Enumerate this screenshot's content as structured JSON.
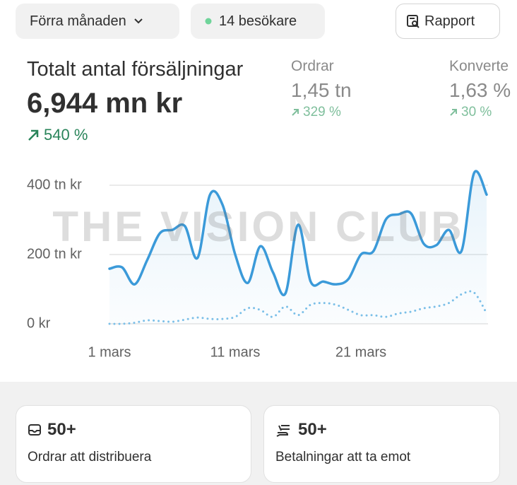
{
  "toolbar": {
    "period": "Förra månaden",
    "visitors": "14 besökare",
    "report": "Rapport"
  },
  "summary": {
    "label": "Totalt antal försäljningar",
    "value": "6,944 mn kr",
    "change": "540 %"
  },
  "metrics": [
    {
      "label": "Ordrar",
      "value": "1,45 tn",
      "change": "329 %"
    },
    {
      "label": "Konverte",
      "value": "1,63 %",
      "change": "30 %"
    }
  ],
  "watermark": "THE VISION CLUB",
  "chart_data": {
    "type": "line",
    "x": [
      1,
      2,
      3,
      4,
      5,
      6,
      7,
      8,
      9,
      10,
      11,
      12,
      13,
      14,
      15,
      16,
      17,
      18,
      19,
      20,
      21,
      22,
      23,
      24,
      25,
      26,
      27,
      28,
      29,
      30,
      31
    ],
    "series": [
      {
        "color": "#3b9ad9",
        "values": [
          159,
          163,
          114,
          184,
          261,
          271,
          282,
          190,
          373,
          343,
          200,
          118,
          224,
          149,
          88,
          286,
          122,
          122,
          114,
          129,
          200,
          210,
          302,
          316,
          318,
          231,
          227,
          271,
          210,
          435,
          373
        ]
      },
      {
        "color": "#7dc0e8",
        "values": [
          0,
          0,
          3,
          10,
          8,
          6,
          12,
          18,
          14,
          14,
          20,
          45,
          40,
          20,
          50,
          25,
          55,
          60,
          55,
          40,
          25,
          25,
          20,
          30,
          35,
          45,
          50,
          60,
          85,
          90,
          30
        ]
      }
    ],
    "xlim": [
      1,
      31
    ],
    "xticks": [
      {
        "value": 1,
        "label": "1 mars"
      },
      {
        "value": 11,
        "label": "11 mars"
      },
      {
        "value": 21,
        "label": "21 mars"
      }
    ],
    "ylim": [
      0,
      440
    ],
    "yticks": [
      {
        "value": 0,
        "label": "0 kr"
      },
      {
        "value": 200,
        "label": "200 tn kr"
      },
      {
        "value": 400,
        "label": "400 tn kr"
      }
    ],
    "grid": true
  },
  "cards": [
    {
      "count": "50+",
      "label": "Ordrar att distribuera"
    },
    {
      "count": "50+",
      "label": "Betalningar att ta emot"
    }
  ]
}
